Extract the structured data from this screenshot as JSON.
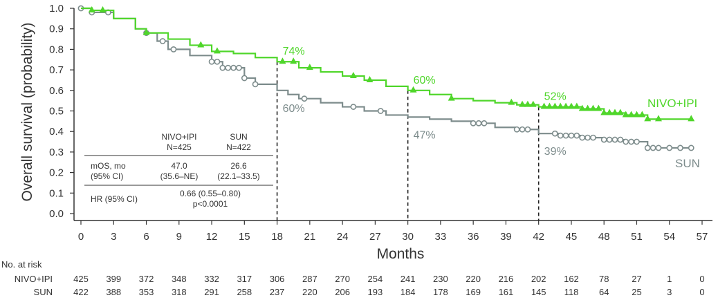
{
  "chart_data": {
    "type": "line",
    "subtype": "kaplan-meier",
    "title": "",
    "xlabel": "Months",
    "ylabel": "Overall survival (probability)",
    "xlim": [
      0,
      57
    ],
    "ylim": [
      0,
      1.0
    ],
    "xticks": [
      0,
      3,
      6,
      9,
      12,
      15,
      18,
      21,
      24,
      27,
      30,
      33,
      36,
      39,
      42,
      45,
      48,
      51,
      54,
      57
    ],
    "yticks": [
      "0.0",
      "0.1",
      "0.2",
      "0.3",
      "0.4",
      "0.5",
      "0.6",
      "0.7",
      "0.8",
      "0.9",
      "1.0"
    ],
    "grid": false,
    "reference_lines_x": [
      18,
      30,
      42
    ],
    "series": [
      {
        "name": "NIVO+IPI",
        "color": "#4fd62a",
        "marker": "triangle",
        "x": [
          0,
          1,
          3,
          5,
          6,
          8,
          10,
          12,
          14,
          16,
          18,
          20,
          22,
          24,
          26,
          28,
          30,
          32,
          34,
          36,
          38,
          40,
          42,
          44,
          46,
          48,
          50,
          52,
          54,
          56
        ],
        "y": [
          1.0,
          0.99,
          0.95,
          0.9,
          0.88,
          0.85,
          0.82,
          0.79,
          0.78,
          0.76,
          0.74,
          0.71,
          0.69,
          0.67,
          0.65,
          0.62,
          0.6,
          0.58,
          0.56,
          0.55,
          0.54,
          0.53,
          0.52,
          0.52,
          0.51,
          0.49,
          0.48,
          0.46,
          0.46,
          0.46
        ],
        "censor_x": [
          1,
          2,
          6,
          11,
          12.5,
          18.5,
          19.5,
          21,
          25,
          26.5,
          30.5,
          34,
          39.5,
          40.5,
          41,
          41.5,
          42.5,
          43,
          43.5,
          44,
          44.5,
          45,
          45.5,
          46,
          46.5,
          47,
          47.5,
          48,
          48.5,
          49,
          49.5,
          50,
          50.5,
          51,
          51.5,
          52,
          53,
          56
        ]
      },
      {
        "name": "SUN",
        "color": "#7d8c8c",
        "marker": "circle",
        "x": [
          0,
          1,
          3,
          5,
          6,
          7,
          8,
          10,
          12,
          13,
          15,
          16,
          18,
          19,
          20,
          22,
          24,
          26,
          28,
          30,
          32,
          34,
          36,
          38,
          40,
          42,
          44,
          46,
          48,
          50,
          52,
          54,
          56
        ],
        "y": [
          1.0,
          0.98,
          0.95,
          0.9,
          0.88,
          0.84,
          0.8,
          0.77,
          0.74,
          0.71,
          0.66,
          0.63,
          0.6,
          0.58,
          0.56,
          0.54,
          0.52,
          0.5,
          0.48,
          0.47,
          0.46,
          0.45,
          0.44,
          0.42,
          0.41,
          0.39,
          0.38,
          0.37,
          0.36,
          0.35,
          0.32,
          0.32,
          0.32
        ],
        "censor_x": [
          0,
          1,
          2.5,
          6,
          7.5,
          8.5,
          12,
          12.5,
          13,
          13.5,
          14,
          14.5,
          15,
          16,
          20.5,
          25,
          27.5,
          36,
          36.5,
          37,
          40,
          40.5,
          41,
          43.5,
          44,
          44.5,
          45,
          45.5,
          46,
          46.5,
          47,
          48,
          48.5,
          49,
          49.5,
          50,
          50.5,
          51,
          52,
          52.5,
          53,
          54,
          55,
          56
        ]
      }
    ],
    "annotations": [
      {
        "x": 18,
        "series": "NIVO+IPI",
        "text": "74%"
      },
      {
        "x": 18,
        "series": "SUN",
        "text": "60%"
      },
      {
        "x": 30,
        "series": "NIVO+IPI",
        "text": "60%"
      },
      {
        "x": 30,
        "series": "SUN",
        "text": "47%"
      },
      {
        "x": 42,
        "series": "NIVO+IPI",
        "text": "52%"
      },
      {
        "x": 42,
        "series": "SUN",
        "text": "39%"
      }
    ],
    "summary_table": {
      "col_headers": [
        {
          "name": "NIVO+IPI",
          "n": "N=425"
        },
        {
          "name": "SUN",
          "n": "N=422"
        }
      ],
      "rows": [
        {
          "label1": "mOS, mo",
          "label2": "(95% CI)",
          "nivo1": "47.0",
          "nivo2": "(35.6–NE)",
          "sun1": "26.6",
          "sun2": "(22.1–33.5)"
        },
        {
          "label1": "HR (95% CI)",
          "hr1": "0.66 (0.55–0.80)",
          "hr2": "p<0.0001"
        }
      ]
    },
    "risk_table": {
      "title": "No. at risk",
      "times": [
        0,
        3,
        6,
        9,
        12,
        15,
        18,
        21,
        24,
        27,
        30,
        33,
        36,
        39,
        42,
        45,
        48,
        51,
        54,
        57
      ],
      "rows": [
        {
          "label": "NIVO+IPI",
          "values": [
            "425",
            "399",
            "372",
            "348",
            "332",
            "317",
            "306",
            "287",
            "270",
            "254",
            "241",
            "230",
            "220",
            "216",
            "202",
            "162",
            "78",
            "27",
            "1",
            "0"
          ]
        },
        {
          "label": "SUN",
          "values": [
            "422",
            "388",
            "353",
            "318",
            "291",
            "258",
            "237",
            "220",
            "206",
            "193",
            "184",
            "178",
            "169",
            "161",
            "145",
            "118",
            "64",
            "25",
            "3",
            "0"
          ]
        }
      ]
    }
  }
}
